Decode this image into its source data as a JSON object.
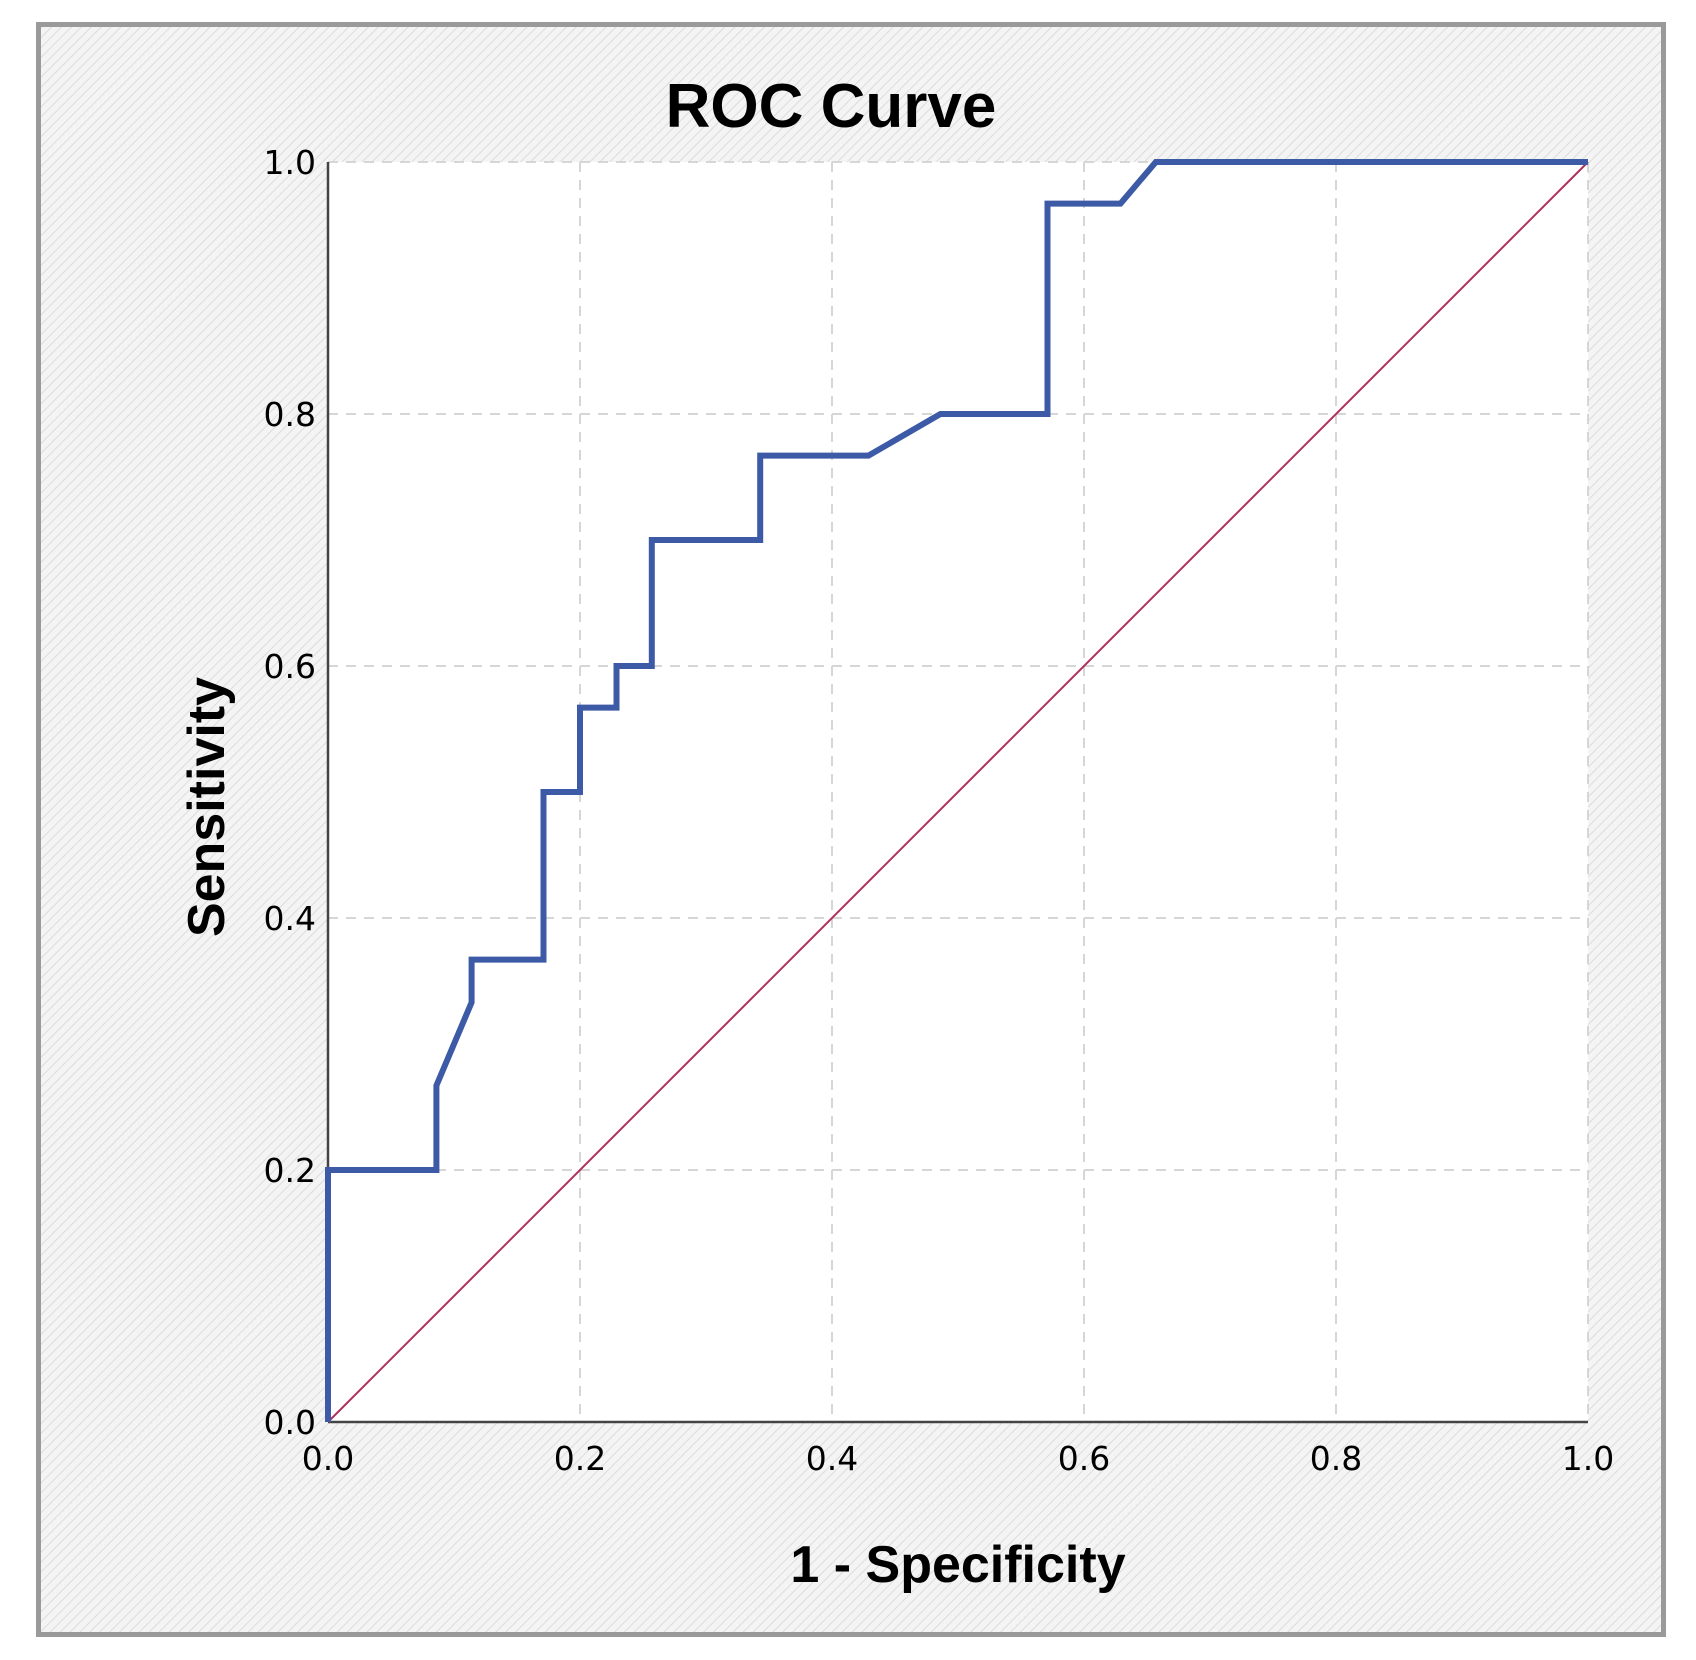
{
  "chart_data": {
    "type": "line",
    "title": "ROC Curve",
    "xlabel": "1 - Specificity",
    "ylabel": "Sensitivity",
    "xlim": [
      0,
      1
    ],
    "ylim": [
      0,
      1
    ],
    "x_ticks": [
      "0.0",
      "0.2",
      "0.4",
      "0.6",
      "0.8",
      "1.0"
    ],
    "y_ticks": [
      "0.0",
      "0.2",
      "0.4",
      "0.6",
      "0.8",
      "1.0"
    ],
    "grid": true,
    "series": [
      {
        "color": "#3c5aa6",
        "x": [
          0.0,
          0.0,
          0.086,
          0.086,
          0.114,
          0.114,
          0.171,
          0.171,
          0.2,
          0.2,
          0.229,
          0.229,
          0.257,
          0.257,
          0.343,
          0.343,
          0.429,
          0.486,
          0.571,
          0.571,
          0.629,
          0.657,
          1.0
        ],
        "y": [
          0.0,
          0.2,
          0.2,
          0.267,
          0.333,
          0.367,
          0.367,
          0.5,
          0.5,
          0.567,
          0.567,
          0.6,
          0.6,
          0.7,
          0.7,
          0.767,
          0.767,
          0.8,
          0.8,
          0.967,
          0.967,
          1.0,
          1.0
        ]
      },
      {
        "color": "#b0305a",
        "x": [
          0.0,
          1.0
        ],
        "y": [
          0.0,
          1.0
        ]
      }
    ]
  }
}
